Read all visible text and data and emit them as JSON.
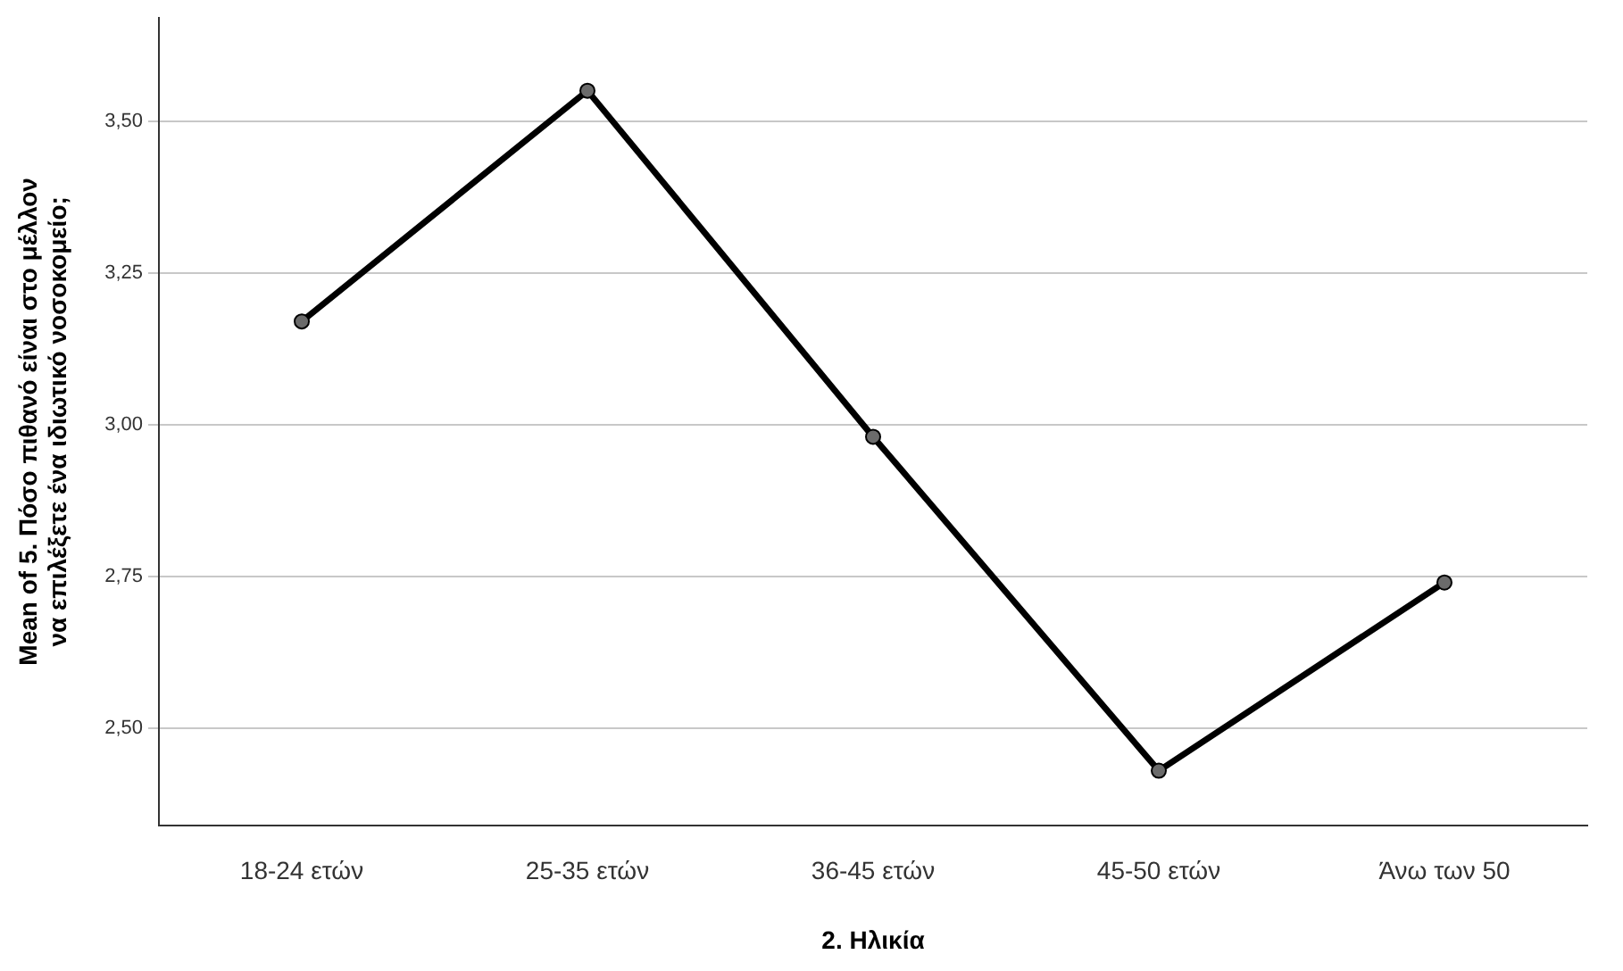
{
  "chart_data": {
    "type": "line",
    "xlabel": "2. Ηλικία",
    "ylabel": "Mean of 5. Πόσο πιθανό είναι στο μέλλον να επιλέξετε ένα ιδιωτικό νοσοκομείο;",
    "categories": [
      "18-24 ετών",
      "25-35 ετών",
      "36-45 ετών",
      "45-50 ετών",
      "Άνω των 50"
    ],
    "series": [
      {
        "color": "#000000",
        "values": [
          3.17,
          3.55,
          2.98,
          2.43,
          2.74
        ]
      }
    ],
    "ylim": [
      2.34,
      3.67
    ],
    "yticks": [
      {
        "value": 2.5,
        "label": "2,50"
      },
      {
        "value": 2.75,
        "label": "2,75"
      },
      {
        "value": 3,
        "label": "3,00"
      },
      {
        "value": 3.25,
        "label": "3,25"
      },
      {
        "value": 3.5,
        "label": "3,50"
      }
    ],
    "grid": "y",
    "legend": false,
    "marker": "circle",
    "line_style": "solid"
  }
}
